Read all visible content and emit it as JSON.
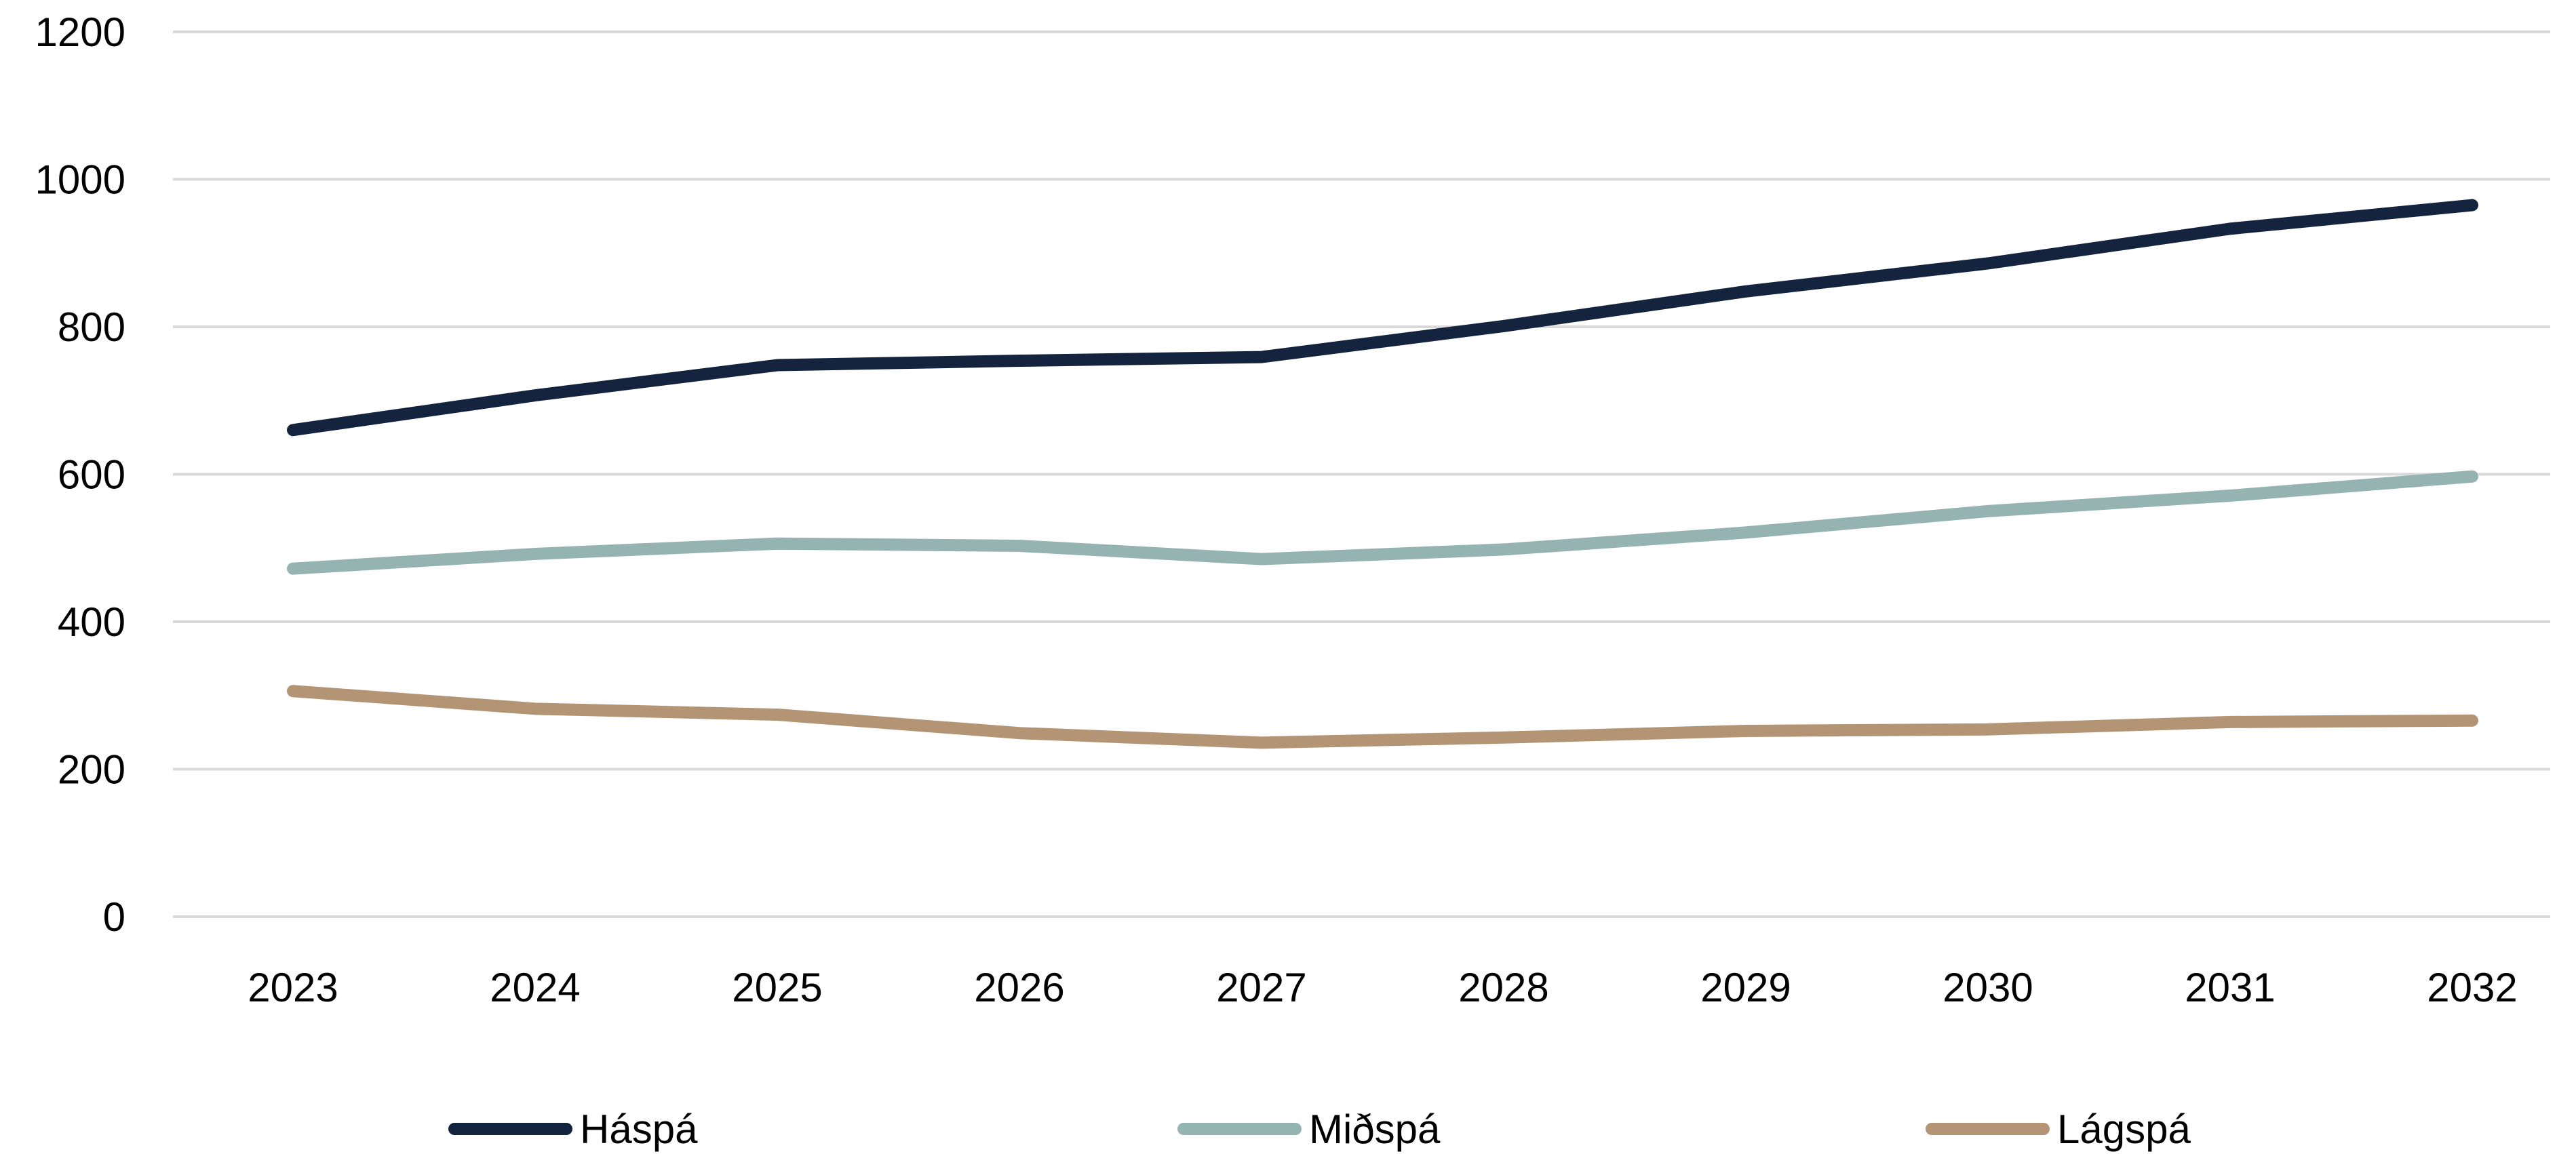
{
  "chart_data": {
    "type": "line",
    "title": "",
    "xlabel": "",
    "ylabel": "",
    "categories": [
      "2023",
      "2024",
      "2025",
      "2026",
      "2027",
      "2028",
      "2029",
      "2030",
      "2031",
      "2032"
    ],
    "ylim": [
      0,
      1200
    ],
    "yticks": [
      0,
      200,
      400,
      600,
      800,
      1000,
      1200
    ],
    "grid": true,
    "legend_position": "bottom",
    "series": [
      {
        "name": "Háspá",
        "color": "#14243e",
        "values": [
          660,
          707,
          748,
          754,
          759,
          801,
          848,
          886,
          933,
          965
        ]
      },
      {
        "name": "Miðspá",
        "color": "#95b3b1",
        "values": [
          472,
          492,
          506,
          503,
          485,
          498,
          521,
          550,
          571,
          597
        ]
      },
      {
        "name": "Lágspá",
        "color": "#b39474",
        "values": [
          306,
          282,
          274,
          249,
          236,
          243,
          252,
          254,
          264,
          266
        ]
      }
    ]
  }
}
